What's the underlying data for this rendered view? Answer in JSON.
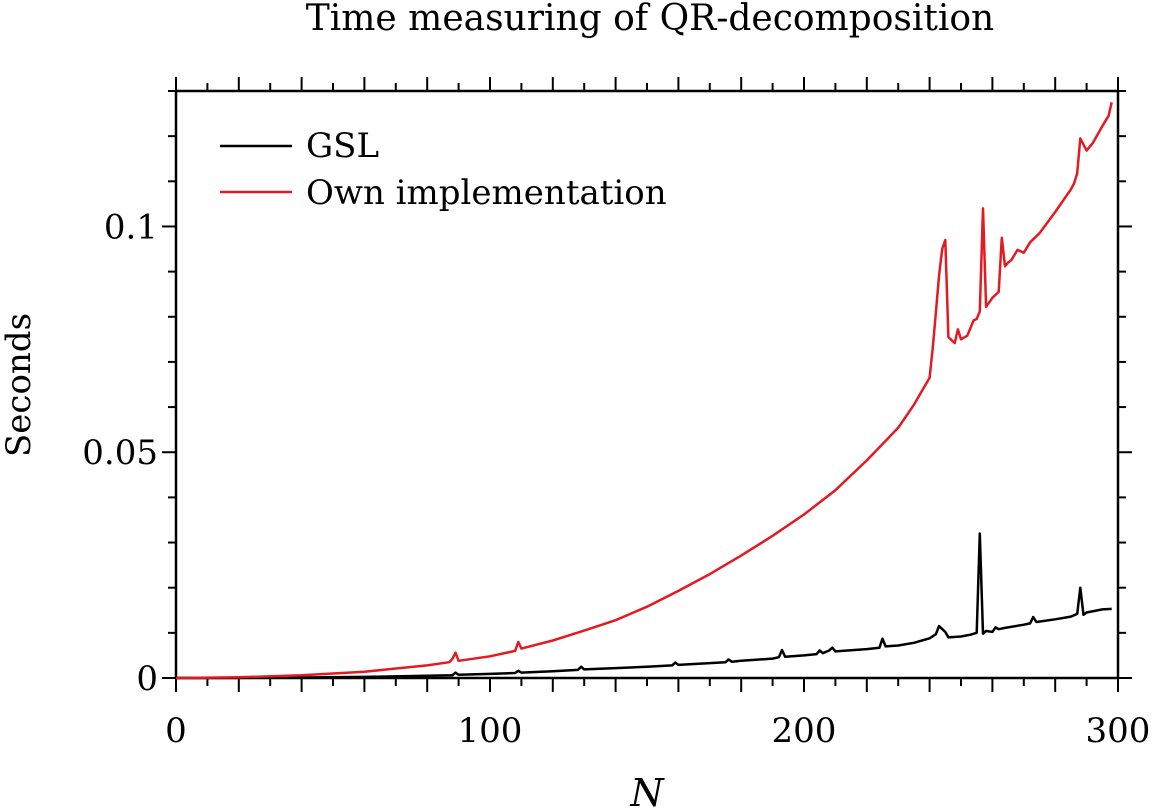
{
  "chart_data": {
    "type": "line",
    "title": "Time measuring of QR-decomposition",
    "xlabel": "N",
    "ylabel": "Seconds",
    "xlim": [
      0,
      300
    ],
    "ylim": [
      0,
      0.13
    ],
    "xticks": [
      0,
      100,
      200,
      300
    ],
    "xtick_labels": [
      "0",
      "100",
      "200",
      "300"
    ],
    "yticks": [
      0,
      0.05,
      0.1
    ],
    "ytick_labels": [
      "0",
      "0.05",
      "0.1"
    ],
    "grid": false,
    "legend_position": "top-left",
    "series": [
      {
        "name": "GSL",
        "color": "#000000",
        "x": [
          0,
          20,
          40,
          60,
          80,
          88,
          89,
          90,
          100,
          108,
          109,
          110,
          120,
          128,
          129,
          130,
          140,
          150,
          158,
          159,
          160,
          170,
          175,
          176,
          177,
          180,
          190,
          192,
          193,
          194,
          200,
          204,
          205,
          206,
          208,
          209,
          210,
          220,
          224,
          225,
          226,
          230,
          235,
          240,
          242,
          243,
          245,
          246,
          250,
          253,
          255,
          256,
          257,
          258,
          260,
          261,
          262,
          264,
          270,
          272,
          273,
          274,
          280,
          285,
          287,
          288,
          289,
          290,
          295,
          298
        ],
        "y": [
          0,
          2e-05,
          0.0001,
          0.00025,
          0.0005,
          0.0006,
          0.0012,
          0.0007,
          0.0009,
          0.0011,
          0.0016,
          0.0012,
          0.0015,
          0.0018,
          0.0025,
          0.0019,
          0.0022,
          0.0025,
          0.0028,
          0.0034,
          0.0029,
          0.0033,
          0.0035,
          0.0041,
          0.0036,
          0.0038,
          0.0043,
          0.0046,
          0.0062,
          0.0047,
          0.005,
          0.0053,
          0.0061,
          0.0055,
          0.0061,
          0.0067,
          0.0059,
          0.0064,
          0.0067,
          0.0087,
          0.007,
          0.0072,
          0.0078,
          0.0088,
          0.0097,
          0.0115,
          0.0102,
          0.009,
          0.0092,
          0.0096,
          0.01,
          0.032,
          0.0098,
          0.0104,
          0.0102,
          0.0112,
          0.0108,
          0.0111,
          0.0118,
          0.0121,
          0.0135,
          0.0124,
          0.013,
          0.0136,
          0.0142,
          0.02,
          0.014,
          0.0145,
          0.0152,
          0.0153
        ]
      },
      {
        "name": "Own implementation",
        "color": "#e41a23",
        "x": [
          0,
          20,
          40,
          60,
          80,
          87,
          88,
          89,
          90,
          100,
          108,
          109,
          110,
          120,
          130,
          140,
          150,
          160,
          170,
          180,
          190,
          200,
          210,
          220,
          230,
          235,
          240,
          241,
          242,
          243,
          244,
          245,
          246,
          247,
          248,
          249,
          250,
          252,
          254,
          255,
          256,
          257,
          258,
          260,
          262,
          263,
          264,
          265,
          266,
          268,
          270,
          272,
          275,
          280,
          285,
          286,
          287,
          288,
          290,
          292,
          295,
          297,
          298
        ],
        "y": [
          0,
          0.00015,
          0.0006,
          0.0014,
          0.0028,
          0.0035,
          0.0042,
          0.0056,
          0.0038,
          0.0048,
          0.006,
          0.008,
          0.0065,
          0.0083,
          0.0105,
          0.0128,
          0.0158,
          0.0193,
          0.023,
          0.0271,
          0.0315,
          0.0362,
          0.0416,
          0.0482,
          0.0554,
          0.0605,
          0.0665,
          0.073,
          0.081,
          0.089,
          0.095,
          0.097,
          0.0755,
          0.0748,
          0.0742,
          0.0772,
          0.075,
          0.0758,
          0.0792,
          0.0795,
          0.0812,
          0.104,
          0.0822,
          0.0842,
          0.0855,
          0.0975,
          0.0912,
          0.092,
          0.0925,
          0.0948,
          0.0942,
          0.0965,
          0.0985,
          0.1032,
          0.1082,
          0.1095,
          0.1118,
          0.1195,
          0.1168,
          0.1185,
          0.1222,
          0.1245,
          0.1275
        ]
      }
    ]
  }
}
